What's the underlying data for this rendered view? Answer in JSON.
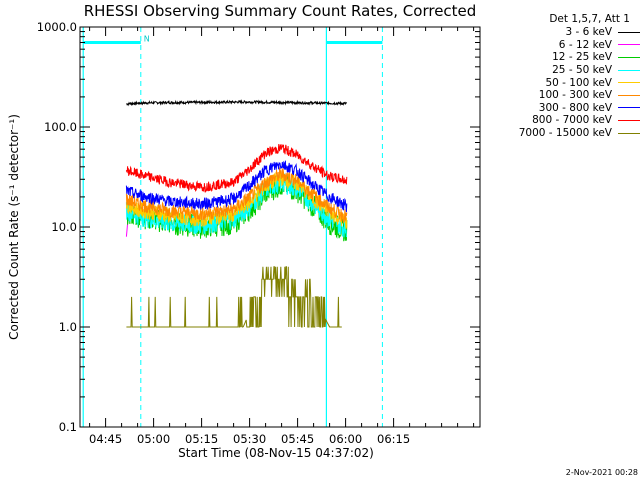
{
  "chart_data": {
    "type": "line",
    "title": "RHESSI Observing Summary Count Rates, Corrected",
    "xlabel": "Start Time (08-Nov-15 04:37:02)",
    "ylabel": "Corrected Count Rate (s⁻¹ detector⁻¹)",
    "y_scale": "log",
    "ylim": [
      0.1,
      1000
    ],
    "xlim_minutes": [
      37.0,
      162.0
    ],
    "y_ticks": [
      {
        "value": 1000,
        "label": "1000.0"
      },
      {
        "value": 100,
        "label": "100.0"
      },
      {
        "value": 10,
        "label": "10.0"
      },
      {
        "value": 1,
        "label": "1.0"
      },
      {
        "value": 0.1,
        "label": "0.1"
      }
    ],
    "x_ticks": [
      {
        "minute": 45,
        "label": "04:45"
      },
      {
        "minute": 60,
        "label": "05:00"
      },
      {
        "minute": 75,
        "label": "05:15"
      },
      {
        "minute": 90,
        "label": "05:30"
      },
      {
        "minute": 105,
        "label": "05:45"
      },
      {
        "minute": 120,
        "label": "06:00"
      },
      {
        "minute": 135,
        "label": "06:15"
      }
    ],
    "legend_header": "Det 1,5,7, Att 1",
    "series": [
      {
        "name": "3 - 6 keV",
        "color": "#000000",
        "x": [
          51.5,
          53,
          60,
          70,
          80,
          90,
          100,
          110,
          120.5
        ],
        "values": [
          170,
          172,
          175,
          176,
          177,
          178,
          176,
          174,
          172
        ]
      },
      {
        "name": "6 - 12 keV",
        "color": "#ff00ff",
        "x": [
          51.5,
          52
        ],
        "values": [
          8,
          12
        ]
      },
      {
        "name": "12 - 25 keV",
        "color": "#00cc00",
        "x": [
          51.5,
          55,
          65,
          75,
          85,
          90,
          95,
          100,
          105,
          110,
          115,
          120.5
        ],
        "values": [
          14,
          13,
          11,
          10,
          11,
          15,
          22,
          27,
          23,
          16,
          11,
          9
        ]
      },
      {
        "name": "25 - 50 keV",
        "color": "#00ffff",
        "x": [
          51.5,
          55,
          65,
          75,
          85,
          90,
          95,
          100,
          105,
          110,
          115,
          120.5
        ],
        "values": [
          15,
          13,
          11,
          10.5,
          12,
          16,
          24,
          28,
          24,
          17,
          12,
          9.5
        ]
      },
      {
        "name": "50 - 100 keV",
        "color": "#ffcc00",
        "x": [
          51.5,
          55,
          65,
          75,
          85,
          90,
          95,
          100,
          105,
          110,
          115,
          120.5
        ],
        "values": [
          17,
          15,
          13,
          12,
          13.5,
          18,
          26,
          31,
          27,
          19,
          14,
          11
        ]
      },
      {
        "name": "100 - 300 keV",
        "color": "#ff8800",
        "x": [
          51.5,
          55,
          65,
          75,
          85,
          90,
          95,
          100,
          105,
          110,
          115,
          120.5
        ],
        "values": [
          19,
          17,
          14.5,
          13.5,
          15,
          20,
          28,
          34,
          29,
          21,
          15.5,
          12.5
        ]
      },
      {
        "name": "300 - 800 keV",
        "color": "#0000ff",
        "x": [
          51.5,
          55,
          65,
          75,
          85,
          90,
          95,
          100,
          105,
          110,
          115,
          120.5
        ],
        "values": [
          23,
          21,
          18,
          17,
          19,
          26,
          37,
          43,
          36,
          26,
          20,
          16
        ]
      },
      {
        "name": "800 - 7000 keV",
        "color": "#ff0000",
        "x": [
          51.5,
          55,
          65,
          75,
          85,
          90,
          95,
          100,
          105,
          110,
          115,
          120.5
        ],
        "values": [
          37,
          34,
          28,
          25,
          28,
          38,
          55,
          62,
          52,
          40,
          32,
          29
        ]
      },
      {
        "name": "7000 - 15000 keV",
        "color": "#808000",
        "x": [
          51.5,
          55,
          62,
          70,
          80,
          88,
          92,
          95,
          100,
          105,
          110,
          115,
          119
        ],
        "values": [
          1.0,
          1.0,
          1.0,
          1.0,
          1.0,
          1.0,
          2.0,
          3.0,
          3.0,
          2.0,
          2.0,
          1.0,
          1.0
        ]
      }
    ],
    "markers": [
      {
        "type": "solid-vline",
        "minute": 38.0,
        "color": "#00ffff"
      },
      {
        "type": "solid-vline",
        "minute": 114.0,
        "color": "#00ffff"
      },
      {
        "type": "dashed-vline",
        "minute": 56.0,
        "color": "#00ffff"
      },
      {
        "type": "dashed-vline",
        "minute": 131.5,
        "color": "#00ffff"
      },
      {
        "type": "night-bar",
        "from": 38.0,
        "to": 56.0,
        "level": 700,
        "color": "#00ffff",
        "label": "N"
      },
      {
        "type": "night-bar",
        "from": 114.0,
        "to": 131.5,
        "level": 700,
        "color": "#00ffff"
      }
    ]
  },
  "timestamp": "2-Nov-2021 00:28"
}
